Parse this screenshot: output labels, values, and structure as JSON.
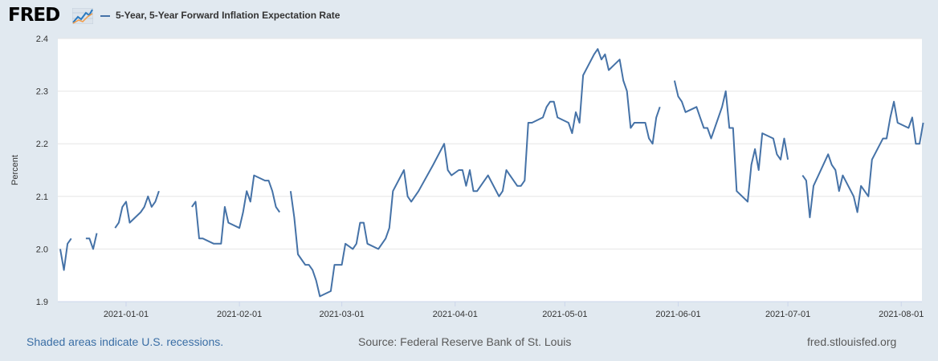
{
  "logo": {
    "text": "FRED",
    "icon": "line-chart-icon"
  },
  "colors": {
    "series": "#4572a7",
    "background": "#e1e9f0",
    "plot": "#ffffff",
    "grid": "#e6e6e6",
    "link": "#3a6ea5"
  },
  "footer": {
    "recessions_note": "Shaded areas indicate U.S. recessions.",
    "source": "Source: Federal Reserve Bank of St. Louis",
    "site": "fred.stlouisfed.org"
  },
  "chart_data": {
    "type": "line",
    "title": "5-Year, 5-Year Forward Inflation Expectation Rate",
    "ylabel": "Percent",
    "xlabel": "",
    "ylim": [
      1.9,
      2.4
    ],
    "yticks": [
      "1.9",
      "2.0",
      "2.1",
      "2.2",
      "2.3",
      "2.4"
    ],
    "xlim": [
      "2020-12-14",
      "2021-08-06"
    ],
    "xticks": [
      "2021-01-01",
      "2021-02-01",
      "2021-03-01",
      "2021-04-01",
      "2021-05-01",
      "2021-06-01",
      "2021-07-01",
      "2021-08-01"
    ],
    "grid": true,
    "legend": "top-left",
    "series": [
      {
        "name": "5-Year, 5-Year Forward Inflation Expectation Rate",
        "segments": [
          [
            [
              "2020-12-14",
              2.0
            ],
            [
              "2020-12-15",
              1.96
            ],
            [
              "2020-12-16",
              2.01
            ],
            [
              "2020-12-17",
              2.02
            ]
          ],
          [
            [
              "2020-12-21",
              2.02
            ],
            [
              "2020-12-22",
              2.02
            ],
            [
              "2020-12-23",
              2.0
            ],
            [
              "2020-12-24",
              2.03
            ]
          ],
          [
            [
              "2020-12-29",
              2.04
            ],
            [
              "2020-12-30",
              2.05
            ],
            [
              "2020-12-31",
              2.08
            ],
            [
              "2021-01-01",
              2.09
            ],
            [
              "2021-01-02",
              2.05
            ],
            [
              "2021-01-05",
              2.07
            ],
            [
              "2021-01-06",
              2.08
            ],
            [
              "2021-01-07",
              2.1
            ],
            [
              "2021-01-08",
              2.08
            ],
            [
              "2021-01-09",
              2.09
            ],
            [
              "2021-01-10",
              2.11
            ]
          ],
          [
            [
              "2021-01-19",
              2.08
            ],
            [
              "2021-01-20",
              2.09
            ],
            [
              "2021-01-21",
              2.02
            ],
            [
              "2021-01-22",
              2.02
            ],
            [
              "2021-01-25",
              2.01
            ],
            [
              "2021-01-26",
              2.01
            ],
            [
              "2021-01-27",
              2.01
            ],
            [
              "2021-01-28",
              2.08
            ],
            [
              "2021-01-29",
              2.05
            ],
            [
              "2021-02-01",
              2.04
            ],
            [
              "2021-02-02",
              2.07
            ],
            [
              "2021-02-03",
              2.11
            ],
            [
              "2021-02-04",
              2.09
            ],
            [
              "2021-02-05",
              2.14
            ],
            [
              "2021-02-08",
              2.13
            ],
            [
              "2021-02-09",
              2.13
            ],
            [
              "2021-02-10",
              2.11
            ],
            [
              "2021-02-11",
              2.08
            ],
            [
              "2021-02-12",
              2.07
            ]
          ],
          [
            [
              "2021-02-15",
              2.11
            ],
            [
              "2021-02-16",
              2.06
            ],
            [
              "2021-02-17",
              1.99
            ],
            [
              "2021-02-18",
              1.98
            ],
            [
              "2021-02-19",
              1.97
            ],
            [
              "2021-02-20",
              1.97
            ],
            [
              "2021-02-21",
              1.96
            ],
            [
              "2021-02-22",
              1.94
            ],
            [
              "2021-02-23",
              1.91
            ],
            [
              "2021-02-26",
              1.92
            ],
            [
              "2021-02-27",
              1.97
            ],
            [
              "2021-02-28",
              1.97
            ],
            [
              "2021-03-01",
              1.97
            ],
            [
              "2021-03-02",
              2.01
            ],
            [
              "2021-03-04",
              2.0
            ],
            [
              "2021-03-05",
              2.01
            ],
            [
              "2021-03-06",
              2.05
            ],
            [
              "2021-03-07",
              2.05
            ],
            [
              "2021-03-08",
              2.01
            ],
            [
              "2021-03-11",
              2.0
            ],
            [
              "2021-03-12",
              2.01
            ],
            [
              "2021-03-13",
              2.02
            ],
            [
              "2021-03-14",
              2.04
            ],
            [
              "2021-03-15",
              2.11
            ],
            [
              "2021-03-18",
              2.15
            ],
            [
              "2021-03-19",
              2.1
            ],
            [
              "2021-03-20",
              2.09
            ],
            [
              "2021-03-22",
              2.11
            ],
            [
              "2021-03-26",
              2.16
            ],
            [
              "2021-03-29",
              2.2
            ],
            [
              "2021-03-30",
              2.15
            ],
            [
              "2021-03-31",
              2.14
            ],
            [
              "2021-04-02",
              2.15
            ],
            [
              "2021-04-03",
              2.15
            ],
            [
              "2021-04-04",
              2.12
            ],
            [
              "2021-04-05",
              2.15
            ],
            [
              "2021-04-06",
              2.11
            ],
            [
              "2021-04-07",
              2.11
            ],
            [
              "2021-04-10",
              2.14
            ],
            [
              "2021-04-13",
              2.1
            ],
            [
              "2021-04-14",
              2.11
            ],
            [
              "2021-04-15",
              2.15
            ],
            [
              "2021-04-18",
              2.12
            ],
            [
              "2021-04-19",
              2.12
            ],
            [
              "2021-04-20",
              2.13
            ],
            [
              "2021-04-21",
              2.24
            ],
            [
              "2021-04-22",
              2.24
            ],
            [
              "2021-04-25",
              2.25
            ],
            [
              "2021-04-26",
              2.27
            ],
            [
              "2021-04-27",
              2.28
            ],
            [
              "2021-04-28",
              2.28
            ],
            [
              "2021-04-29",
              2.25
            ],
            [
              "2021-05-02",
              2.24
            ],
            [
              "2021-05-03",
              2.22
            ],
            [
              "2021-05-04",
              2.26
            ],
            [
              "2021-05-05",
              2.24
            ],
            [
              "2021-05-06",
              2.33
            ],
            [
              "2021-05-09",
              2.37
            ],
            [
              "2021-05-10",
              2.38
            ],
            [
              "2021-05-11",
              2.36
            ],
            [
              "2021-05-12",
              2.37
            ],
            [
              "2021-05-13",
              2.34
            ],
            [
              "2021-05-16",
              2.36
            ],
            [
              "2021-05-17",
              2.32
            ],
            [
              "2021-05-18",
              2.3
            ],
            [
              "2021-05-19",
              2.23
            ],
            [
              "2021-05-20",
              2.24
            ],
            [
              "2021-05-23",
              2.24
            ],
            [
              "2021-05-24",
              2.21
            ],
            [
              "2021-05-25",
              2.2
            ],
            [
              "2021-05-26",
              2.25
            ],
            [
              "2021-05-27",
              2.27
            ]
          ],
          [
            [
              "2021-05-31",
              2.32
            ],
            [
              "2021-06-01",
              2.29
            ],
            [
              "2021-06-02",
              2.28
            ],
            [
              "2021-06-03",
              2.26
            ],
            [
              "2021-06-06",
              2.27
            ],
            [
              "2021-06-07",
              2.25
            ],
            [
              "2021-06-08",
              2.23
            ],
            [
              "2021-06-09",
              2.23
            ],
            [
              "2021-06-10",
              2.21
            ],
            [
              "2021-06-13",
              2.27
            ],
            [
              "2021-06-14",
              2.3
            ],
            [
              "2021-06-15",
              2.23
            ],
            [
              "2021-06-16",
              2.23
            ],
            [
              "2021-06-17",
              2.11
            ],
            [
              "2021-06-20",
              2.09
            ],
            [
              "2021-06-21",
              2.16
            ],
            [
              "2021-06-22",
              2.19
            ],
            [
              "2021-06-23",
              2.15
            ],
            [
              "2021-06-24",
              2.22
            ],
            [
              "2021-06-27",
              2.21
            ],
            [
              "2021-06-28",
              2.18
            ],
            [
              "2021-06-29",
              2.17
            ],
            [
              "2021-06-30",
              2.21
            ],
            [
              "2021-07-01",
              2.17
            ]
          ],
          [
            [
              "2021-07-05",
              2.14
            ],
            [
              "2021-07-06",
              2.13
            ],
            [
              "2021-07-07",
              2.06
            ],
            [
              "2021-07-08",
              2.12
            ],
            [
              "2021-07-12",
              2.18
            ],
            [
              "2021-07-13",
              2.16
            ],
            [
              "2021-07-14",
              2.15
            ],
            [
              "2021-07-15",
              2.11
            ],
            [
              "2021-07-16",
              2.14
            ],
            [
              "2021-07-19",
              2.1
            ],
            [
              "2021-07-20",
              2.07
            ],
            [
              "2021-07-21",
              2.12
            ],
            [
              "2021-07-23",
              2.1
            ],
            [
              "2021-07-24",
              2.17
            ],
            [
              "2021-07-27",
              2.21
            ],
            [
              "2021-07-28",
              2.21
            ],
            [
              "2021-07-29",
              2.25
            ],
            [
              "2021-07-30",
              2.28
            ],
            [
              "2021-07-31",
              2.24
            ],
            [
              "2021-08-03",
              2.23
            ],
            [
              "2021-08-04",
              2.25
            ],
            [
              "2021-08-05",
              2.2
            ],
            [
              "2021-08-06",
              2.2
            ],
            [
              "2021-08-07",
              2.24
            ]
          ]
        ]
      }
    ]
  }
}
